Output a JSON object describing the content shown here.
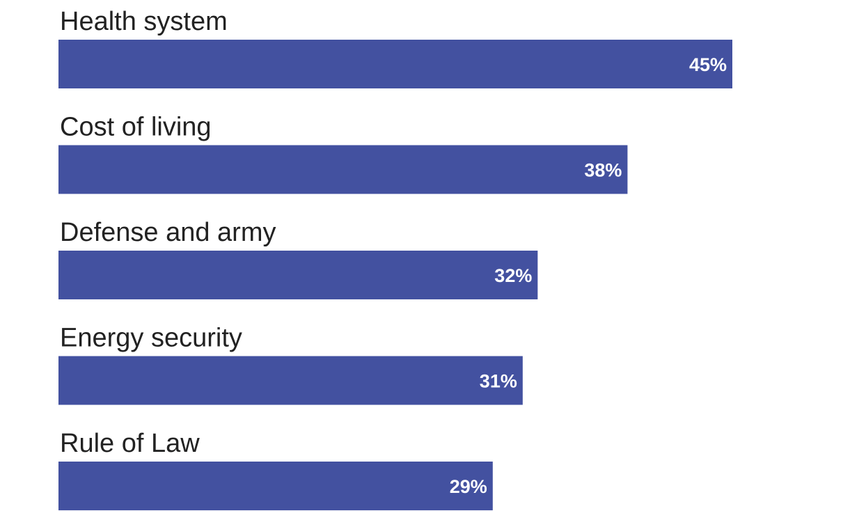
{
  "chart_data": {
    "type": "bar",
    "orientation": "horizontal",
    "categories": [
      "Health system",
      "Cost of living",
      "Defense and army",
      "Energy security",
      "Rule of Law"
    ],
    "values": [
      45,
      38,
      32,
      31,
      29
    ],
    "value_labels": [
      "45%",
      "38%",
      "32%",
      "31%",
      "29%"
    ],
    "unit": "%",
    "xlim": [
      0,
      100
    ],
    "grid": false,
    "legend": "none"
  },
  "colors": {
    "bar": "#4351a0",
    "label_text": "#222222",
    "value_text": "#ffffff"
  }
}
